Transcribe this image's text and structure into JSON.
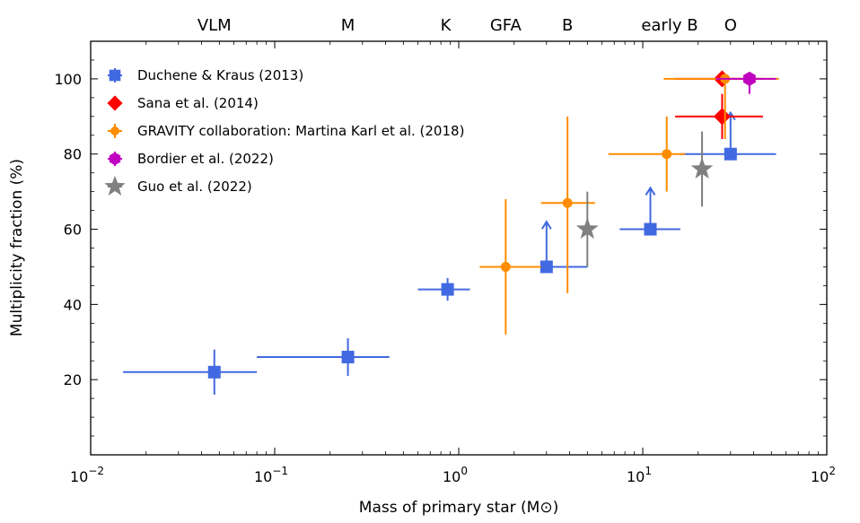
{
  "chart_data": {
    "type": "scatter",
    "xscale": "log",
    "xlim": [
      0.01,
      100
    ],
    "ylim": [
      0,
      110
    ],
    "xlabel": "Mass of primary star (M⊙)",
    "ylabel": "Multiplicity fraction (%)",
    "x_ticks": [
      {
        "value": 0.01,
        "base": "10",
        "exp": "−2"
      },
      {
        "value": 0.1,
        "base": "10",
        "exp": "−1"
      },
      {
        "value": 1,
        "base": "10",
        "exp": "0"
      },
      {
        "value": 10,
        "base": "10",
        "exp": "1"
      },
      {
        "value": 100,
        "base": "10",
        "exp": "2"
      }
    ],
    "y_ticks": [
      {
        "value": 20,
        "label": "20"
      },
      {
        "value": 40,
        "label": "40"
      },
      {
        "value": 60,
        "label": "60"
      },
      {
        "value": 80,
        "label": "80"
      },
      {
        "value": 100,
        "label": "100"
      }
    ],
    "top_labels": [
      {
        "label": "VLM",
        "x": 0.047
      },
      {
        "label": "M",
        "x": 0.25
      },
      {
        "label": "K",
        "x": 0.85
      },
      {
        "label": "GFA",
        "x": 1.8
      },
      {
        "label": "B",
        "x": 3.9
      },
      {
        "label": "early B",
        "x": 14
      },
      {
        "label": "O",
        "x": 30
      }
    ],
    "series": [
      {
        "name": "Duchene & Kraus (2013)",
        "marker": "square",
        "color": "#4169e1",
        "points": [
          {
            "x": 0.047,
            "y": 22,
            "xlo": 0.015,
            "xhi": 0.08,
            "ylo": 16,
            "yhi": 28
          },
          {
            "x": 0.25,
            "y": 26,
            "xlo": 0.08,
            "xhi": 0.42,
            "ylo": 21,
            "yhi": 31
          },
          {
            "x": 0.87,
            "y": 44,
            "xlo": 0.6,
            "xhi": 1.15,
            "ylo": 41,
            "yhi": 47
          },
          {
            "x": 3.0,
            "y": 50,
            "xlo": 1.5,
            "xhi": 5.0,
            "lower_limit": 62
          },
          {
            "x": 11,
            "y": 60,
            "xlo": 7.5,
            "xhi": 16,
            "lower_limit": 71
          },
          {
            "x": 30,
            "y": 80,
            "xlo": 16,
            "xhi": 53,
            "lower_limit": 91
          }
        ]
      },
      {
        "name": "Sana et al. (2014)",
        "marker": "diamond",
        "color": "#ff0000",
        "points": [
          {
            "x": 27,
            "y": 100,
            "xlo": 15,
            "xhi": 45
          },
          {
            "x": 27,
            "y": 90,
            "xlo": 15,
            "xhi": 45,
            "ylo": 84,
            "yhi": 96
          }
        ]
      },
      {
        "name": "GRAVITY collaboration: Martina Karl et al. (2018)",
        "marker": "circle",
        "color": "#ff8c00",
        "points": [
          {
            "x": 1.8,
            "y": 50,
            "xlo": 1.3,
            "xhi": 2.8,
            "ylo": 32,
            "yhi": 68
          },
          {
            "x": 3.9,
            "y": 67,
            "xlo": 2.8,
            "xhi": 5.5,
            "ylo": 43,
            "yhi": 90
          },
          {
            "x": 13.5,
            "y": 80,
            "xlo": 6.5,
            "xhi": 17,
            "ylo": 70,
            "yhi": 90
          },
          {
            "x": 28,
            "y": 100,
            "xlo": 13,
            "xhi": 55,
            "ylo": 84,
            "yhi": 101
          }
        ]
      },
      {
        "name": "Bordier et al. (2022)",
        "marker": "hexagon",
        "color": "#c000c0",
        "points": [
          {
            "x": 38,
            "y": 100,
            "xlo": 25,
            "xhi": 53,
            "ylo": 96,
            "yhi": 101
          }
        ]
      },
      {
        "name": "Guo et al. (2022)",
        "marker": "star",
        "color": "#808080",
        "points": [
          {
            "x": 5,
            "y": 60,
            "ylo": 50,
            "yhi": 70
          },
          {
            "x": 21,
            "y": 76,
            "ylo": 66,
            "yhi": 86
          }
        ]
      }
    ]
  }
}
